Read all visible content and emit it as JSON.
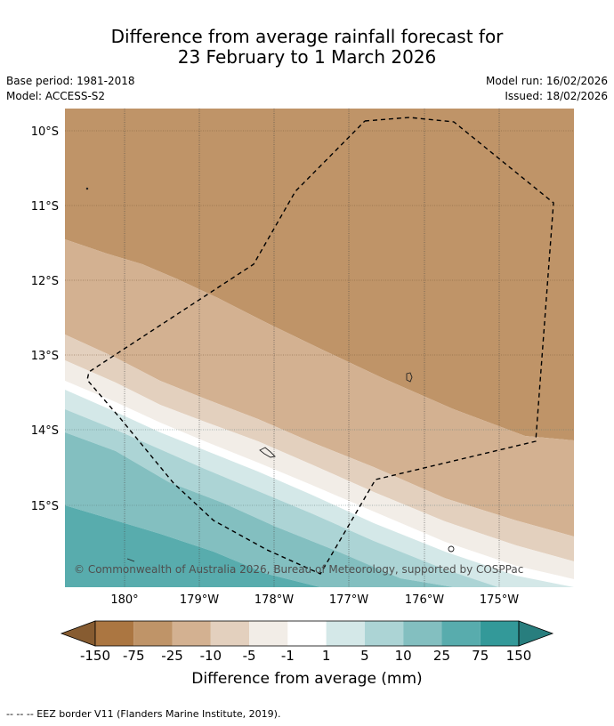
{
  "title": {
    "line1": "Difference from average rainfall forecast for",
    "line2": "23 February to 1 March 2026"
  },
  "meta": {
    "base_period": "Base period: 1981-2018",
    "model": "Model: ACCESS-S2",
    "model_run": "Model run: 16/02/2026",
    "issued": "Issued: 18/02/2026"
  },
  "map": {
    "copyright": "© Commonwealth of Australia 2026, Bureau of Meteorology, supported by COSPPac",
    "lat_labels": [
      "10°S",
      "11°S",
      "12°S",
      "13°S",
      "14°S",
      "15°S"
    ],
    "lon_labels": [
      "180°",
      "179°W",
      "178°W",
      "177°W",
      "176°W",
      "175°W"
    ]
  },
  "colorbar": {
    "title": "Difference from average (mm)",
    "tick_labels": [
      "-150",
      "-75",
      "-25",
      "-10",
      "-5",
      "-1",
      "1",
      "5",
      "10",
      "25",
      "75",
      "150"
    ],
    "colors": [
      "#875c31",
      "#ab7641",
      "#bf9468",
      "#d3b191",
      "#e3d0be",
      "#f2ede7",
      "#ffffff",
      "#d4e8e8",
      "#acd4d5",
      "#83bfc0",
      "#58acad",
      "#339999",
      "#287e7e"
    ]
  },
  "footnote": "--  --  -- EEZ border V11 (Flanders Marine Institute, 2019)."
}
